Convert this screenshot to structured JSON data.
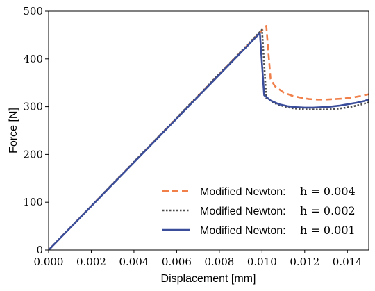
{
  "chart_data": {
    "type": "line",
    "xlabel": "Displacement [mm]",
    "ylabel": "Force [N]",
    "xlim": [
      0.0,
      0.015
    ],
    "ylim": [
      0,
      500
    ],
    "xticks": [
      "0.000",
      "0.002",
      "0.004",
      "0.006",
      "0.008",
      "0.010",
      "0.012",
      "0.014"
    ],
    "xtick_values": [
      0.0,
      0.002,
      0.004,
      0.006,
      0.008,
      0.01,
      0.012,
      0.014
    ],
    "yticks": [
      "0",
      "100",
      "200",
      "300",
      "400",
      "500"
    ],
    "ytick_values": [
      0,
      100,
      200,
      300,
      400,
      500
    ],
    "grid": false,
    "legend_position": "bottom-right",
    "series": [
      {
        "name": "Modified Newton:",
        "h_label": "h = 0.004",
        "color": "#f07f4a",
        "style": "dashed",
        "x": [
          0.0,
          0.0102,
          0.0104,
          0.0106,
          0.011,
          0.0114,
          0.0118,
          0.0122,
          0.0126,
          0.013,
          0.0134,
          0.0138,
          0.0142,
          0.0146,
          0.015
        ],
        "y": [
          0,
          469,
          358,
          343,
          330,
          323,
          319,
          316,
          315,
          315,
          316,
          317,
          319,
          322,
          326
        ]
      },
      {
        "name": "Modified Newton:",
        "h_label": "h = 0.002",
        "color": "#4d4d4d",
        "style": "dotted",
        "x": [
          0.0,
          0.01,
          0.0102,
          0.0106,
          0.011,
          0.0114,
          0.0118,
          0.0122,
          0.0126,
          0.013,
          0.0134,
          0.0138,
          0.0142,
          0.0146,
          0.015
        ],
        "y": [
          0,
          461,
          318,
          307,
          301,
          297,
          295,
          294,
          294,
          294,
          295,
          297,
          300,
          304,
          309
        ]
      },
      {
        "name": "Modified Newton:",
        "h_label": "h = 0.001",
        "color": "#3a4d9a",
        "style": "solid",
        "x": [
          0.0,
          0.0099,
          0.0101,
          0.0104,
          0.0108,
          0.0112,
          0.0116,
          0.012,
          0.0124,
          0.0128,
          0.0132,
          0.0136,
          0.014,
          0.0144,
          0.0148,
          0.015
        ],
        "y": [
          0,
          454,
          324,
          313,
          305,
          301,
          299,
          298,
          298,
          299,
          300,
          302,
          305,
          308,
          312,
          315
        ]
      }
    ]
  }
}
